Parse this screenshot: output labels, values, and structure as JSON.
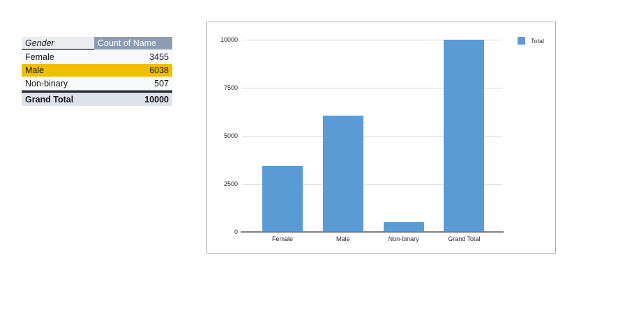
{
  "table": {
    "headers": {
      "gender": "Gender",
      "count": "Count of Name"
    },
    "rows": [
      {
        "label": "Female",
        "value": "3455",
        "highlight": false
      },
      {
        "label": "Male",
        "value": "6038",
        "highlight": true
      },
      {
        "label": "Non-binary",
        "value": "507",
        "highlight": false
      }
    ],
    "total": {
      "label": "Grand Total",
      "value": "10000"
    }
  },
  "chart_data": {
    "type": "bar",
    "title": "",
    "categories": [
      "Female",
      "Male",
      "Non-binary",
      "Grand Total"
    ],
    "series": [
      {
        "name": "Total",
        "values": [
          3455,
          6038,
          507,
          10000
        ]
      }
    ],
    "xlabel": "",
    "ylabel": "",
    "ylim": [
      0,
      10000
    ],
    "yticks": [
      0,
      2500,
      5000,
      7500,
      10000
    ],
    "grid": true,
    "legend_position": "top-right",
    "bar_color": "#5b9bd5"
  },
  "colors": {
    "bar": "#5b9bd5",
    "row_highlight": "#f0bf00",
    "header_fill": "#8b9cb3",
    "header_gender_fill": "#e9edf2",
    "total_fill": "#dbe2ec",
    "row_fill": "#f7f9fc",
    "gridline": "#d9d9d9",
    "axis": "#808080",
    "chart_border": "#a7a7a7"
  }
}
